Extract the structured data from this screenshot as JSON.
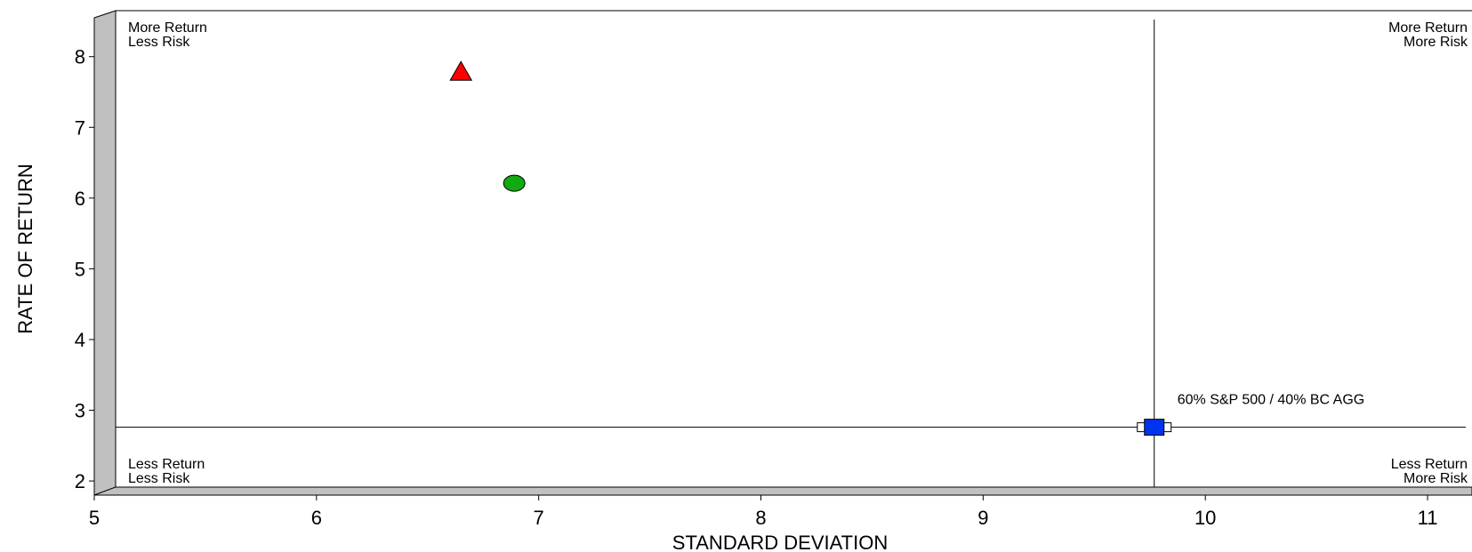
{
  "chart_data": {
    "type": "scatter",
    "xlabel": "STANDARD DEVIATION",
    "ylabel": "RATE OF RETURN",
    "xlim": [
      5,
      11.2
    ],
    "ylim": [
      1.8,
      8.65
    ],
    "x_ticks": [
      5,
      6,
      7,
      8,
      9,
      10,
      11
    ],
    "y_ticks": [
      2,
      3,
      4,
      5,
      6,
      7,
      8
    ],
    "grid": false,
    "crosshair": {
      "x": 9.77,
      "y": 2.76
    },
    "quadrant_labels": {
      "top_left": [
        "More Return",
        "Less Risk"
      ],
      "top_right": [
        "More Return",
        "More Risk"
      ],
      "bottom_left": [
        "Less Return",
        "Less Risk"
      ],
      "bottom_right": [
        "Less Return",
        "More Risk"
      ]
    },
    "points": [
      {
        "x": 6.65,
        "y": 7.78,
        "marker": "triangle",
        "color": "#ff0000",
        "label": ""
      },
      {
        "x": 6.89,
        "y": 6.21,
        "marker": "circle",
        "color": "#11aa11",
        "label": ""
      },
      {
        "x": 9.77,
        "y": 2.76,
        "marker": "square",
        "color": "#0033ee",
        "label": "60% S&P 500 / 40% BC AGG"
      }
    ]
  }
}
